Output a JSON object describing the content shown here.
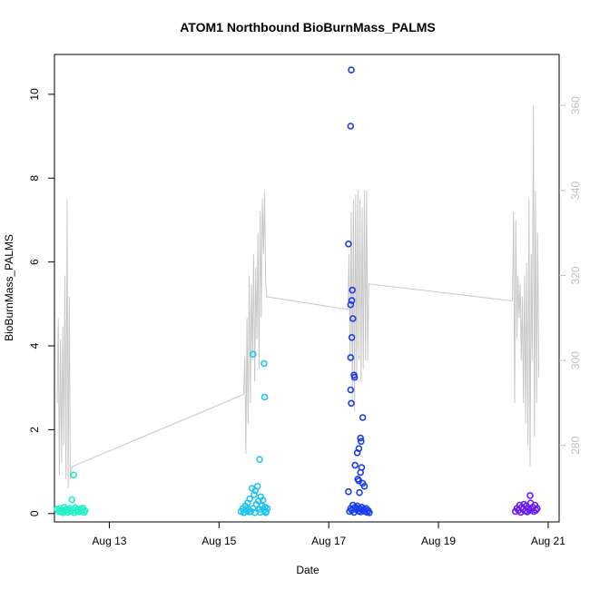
{
  "chart_data": {
    "type": "scatter",
    "title": "ATOM1 Northbound BioBurnMass_PALMS",
    "xlabel": "Date",
    "ylabel": "BioBurnMass_PALMS",
    "x_ticks": [
      "Aug 13",
      "Aug 15",
      "Aug 17",
      "Aug 19",
      "Aug 21"
    ],
    "x_range_days": [
      12.0,
      21.2
    ],
    "ylim": [
      -0.2,
      10.95
    ],
    "y_ticks": [
      0,
      2,
      4,
      6,
      8,
      10
    ],
    "y2lim": [
      262,
      372
    ],
    "y2_ticks": [
      280,
      300,
      320,
      340,
      360
    ],
    "colors": {
      "series_1": "#22f0c8",
      "series_2": "#22c3f0",
      "series_3": "#1a3cee",
      "series_4": "#6a1aee",
      "secondary_line": "#c8c8c8"
    },
    "series": [
      {
        "color_key": "series_1",
        "points": [
          [
            12.05,
            0.1
          ],
          [
            12.08,
            0.05
          ],
          [
            12.1,
            0.12
          ],
          [
            12.12,
            0.04
          ],
          [
            12.14,
            0.08
          ],
          [
            12.16,
            0.02
          ],
          [
            12.18,
            0.15
          ],
          [
            12.2,
            0.06
          ],
          [
            12.22,
            0.1
          ],
          [
            12.24,
            0.03
          ],
          [
            12.26,
            0.08
          ],
          [
            12.28,
            0.12
          ],
          [
            12.3,
            0.05
          ],
          [
            12.32,
            0.33
          ],
          [
            12.34,
            0.09
          ],
          [
            12.36,
            0.02
          ],
          [
            12.38,
            0.14
          ],
          [
            12.4,
            0.06
          ],
          [
            12.42,
            0.1
          ],
          [
            12.44,
            0.04
          ],
          [
            12.46,
            0.08
          ],
          [
            12.48,
            0.11
          ],
          [
            12.5,
            0.05
          ],
          [
            12.52,
            0.13
          ],
          [
            12.54,
            0.03
          ],
          [
            12.56,
            0.07
          ],
          [
            12.35,
            0.92
          ]
        ]
      },
      {
        "color_key": "series_2",
        "points": [
          [
            15.4,
            0.05
          ],
          [
            15.43,
            0.12
          ],
          [
            15.46,
            0.03
          ],
          [
            15.48,
            0.18
          ],
          [
            15.5,
            0.08
          ],
          [
            15.52,
            0.25
          ],
          [
            15.54,
            0.1
          ],
          [
            15.56,
            0.35
          ],
          [
            15.58,
            0.05
          ],
          [
            15.6,
            0.6
          ],
          [
            15.62,
            0.12
          ],
          [
            15.64,
            0.45
          ],
          [
            15.66,
            0.55
          ],
          [
            15.68,
            0.22
          ],
          [
            15.7,
            0.65
          ],
          [
            15.72,
            0.3
          ],
          [
            15.74,
            0.1
          ],
          [
            15.76,
            0.4
          ],
          [
            15.78,
            0.18
          ],
          [
            15.8,
            0.32
          ],
          [
            15.82,
            0.08
          ],
          [
            15.84,
            0.15
          ],
          [
            15.86,
            0.05
          ],
          [
            15.88,
            0.12
          ],
          [
            15.62,
            3.8
          ],
          [
            15.82,
            3.58
          ],
          [
            15.83,
            2.78
          ],
          [
            15.74,
            1.29
          ],
          [
            15.45,
            0.02
          ],
          [
            15.55,
            0.04
          ],
          [
            15.65,
            0.02
          ],
          [
            15.75,
            0.03
          ],
          [
            15.85,
            0.02
          ]
        ]
      },
      {
        "color_key": "series_3",
        "points": [
          [
            17.38,
            0.05
          ],
          [
            17.4,
            0.12
          ],
          [
            17.42,
            0.08
          ],
          [
            17.44,
            0.2
          ],
          [
            17.46,
            0.03
          ],
          [
            17.48,
            0.15
          ],
          [
            17.5,
            0.1
          ],
          [
            17.52,
            0.18
          ],
          [
            17.54,
            0.06
          ],
          [
            17.56,
            0.12
          ],
          [
            17.58,
            0.04
          ],
          [
            17.6,
            0.15
          ],
          [
            17.62,
            0.08
          ],
          [
            17.64,
            0.1
          ],
          [
            17.66,
            0.05
          ],
          [
            17.68,
            0.12
          ],
          [
            17.7,
            0.03
          ],
          [
            17.72,
            0.07
          ],
          [
            17.74,
            0.02
          ],
          [
            17.41,
            10.58
          ],
          [
            17.4,
            9.24
          ],
          [
            17.36,
            6.43
          ],
          [
            17.43,
            5.33
          ],
          [
            17.42,
            5.08
          ],
          [
            17.4,
            4.98
          ],
          [
            17.44,
            4.65
          ],
          [
            17.42,
            4.2
          ],
          [
            17.4,
            3.72
          ],
          [
            17.46,
            3.3
          ],
          [
            17.47,
            3.25
          ],
          [
            17.4,
            2.95
          ],
          [
            17.41,
            2.63
          ],
          [
            17.62,
            2.29
          ],
          [
            17.58,
            1.8
          ],
          [
            17.59,
            1.72
          ],
          [
            17.55,
            1.55
          ],
          [
            17.52,
            1.45
          ],
          [
            17.48,
            1.15
          ],
          [
            17.6,
            1.1
          ],
          [
            17.58,
            0.98
          ],
          [
            17.53,
            0.82
          ],
          [
            17.55,
            0.78
          ],
          [
            17.62,
            0.72
          ],
          [
            17.65,
            0.65
          ],
          [
            17.36,
            0.52
          ],
          [
            17.56,
            0.5
          ]
        ]
      },
      {
        "color_key": "series_4",
        "points": [
          [
            20.4,
            0.05
          ],
          [
            20.43,
            0.12
          ],
          [
            20.46,
            0.08
          ],
          [
            20.48,
            0.2
          ],
          [
            20.5,
            0.03
          ],
          [
            20.52,
            0.15
          ],
          [
            20.54,
            0.1
          ],
          [
            20.56,
            0.22
          ],
          [
            20.58,
            0.06
          ],
          [
            20.6,
            0.18
          ],
          [
            20.62,
            0.04
          ],
          [
            20.64,
            0.12
          ],
          [
            20.66,
            0.08
          ],
          [
            20.68,
            0.25
          ],
          [
            20.7,
            0.1
          ],
          [
            20.72,
            0.15
          ],
          [
            20.74,
            0.05
          ],
          [
            20.76,
            0.2
          ],
          [
            20.78,
            0.08
          ],
          [
            20.8,
            0.12
          ],
          [
            20.67,
            0.43
          ]
        ]
      }
    ],
    "secondary_series": {
      "color_key": "secondary_line",
      "points": [
        [
          12.05,
          290
        ],
        [
          12.07,
          310
        ],
        [
          12.09,
          273
        ],
        [
          12.11,
          305
        ],
        [
          12.13,
          276
        ],
        [
          12.15,
          308
        ],
        [
          12.17,
          280
        ],
        [
          12.19,
          320
        ],
        [
          12.21,
          272
        ],
        [
          12.23,
          338
        ],
        [
          12.25,
          270
        ],
        [
          12.27,
          315
        ],
        [
          12.29,
          272
        ],
        [
          12.32,
          275
        ],
        [
          15.45,
          292
        ],
        [
          15.47,
          301
        ],
        [
          15.49,
          278
        ],
        [
          15.51,
          310
        ],
        [
          15.53,
          285
        ],
        [
          15.55,
          320
        ],
        [
          15.57,
          290
        ],
        [
          15.59,
          318
        ],
        [
          15.61,
          300
        ],
        [
          15.63,
          325
        ],
        [
          15.65,
          295
        ],
        [
          15.67,
          322
        ],
        [
          15.69,
          305
        ],
        [
          15.71,
          330
        ],
        [
          15.73,
          298
        ],
        [
          15.75,
          335
        ],
        [
          15.77,
          310
        ],
        [
          15.79,
          338
        ],
        [
          15.81,
          325
        ],
        [
          15.83,
          340
        ],
        [
          15.85,
          318
        ],
        [
          15.87,
          315
        ],
        [
          17.35,
          312
        ],
        [
          17.37,
          325
        ],
        [
          17.39,
          300
        ],
        [
          17.41,
          335
        ],
        [
          17.43,
          290
        ],
        [
          17.45,
          338
        ],
        [
          17.47,
          288
        ],
        [
          17.49,
          339
        ],
        [
          17.51,
          295
        ],
        [
          17.53,
          340
        ],
        [
          17.55,
          300
        ],
        [
          17.57,
          338
        ],
        [
          17.59,
          295
        ],
        [
          17.61,
          336
        ],
        [
          17.63,
          298
        ],
        [
          17.65,
          340
        ],
        [
          17.67,
          300
        ],
        [
          17.69,
          340
        ],
        [
          17.71,
          300
        ],
        [
          17.73,
          318
        ],
        [
          20.35,
          314
        ],
        [
          20.37,
          335
        ],
        [
          20.39,
          290
        ],
        [
          20.41,
          333
        ],
        [
          20.43,
          305
        ],
        [
          20.45,
          320
        ],
        [
          20.47,
          310
        ],
        [
          20.49,
          318
        ],
        [
          20.51,
          300
        ],
        [
          20.53,
          315
        ],
        [
          20.55,
          290
        ],
        [
          20.57,
          320
        ],
        [
          20.59,
          285
        ],
        [
          20.61,
          323
        ],
        [
          20.63,
          280
        ],
        [
          20.65,
          338
        ],
        [
          20.67,
          275
        ],
        [
          20.69,
          325
        ],
        [
          20.71,
          300
        ],
        [
          20.73,
          360
        ],
        [
          20.75,
          282
        ],
        [
          20.77,
          340
        ],
        [
          20.79,
          290
        ],
        [
          20.81,
          330
        ],
        [
          20.83,
          296
        ]
      ]
    }
  }
}
